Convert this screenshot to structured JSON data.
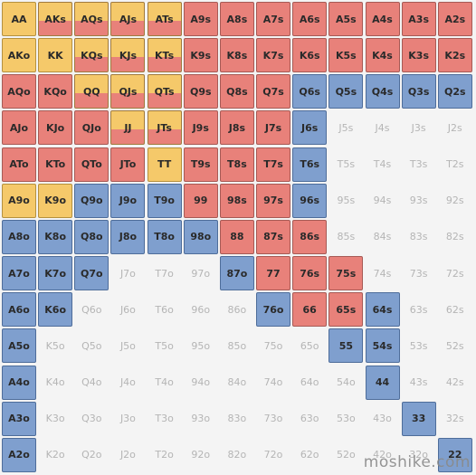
{
  "colors": {
    "red": "#e8817a",
    "blue": "#7f9fce",
    "yellow": "#f5c96a",
    "empty_text": "#b5b5b5"
  },
  "ranks": [
    "A",
    "K",
    "Q",
    "J",
    "T",
    "9",
    "8",
    "7",
    "6",
    "5",
    "4",
    "3",
    "2"
  ],
  "rows": [
    [
      "AA:y",
      "AKs:yr",
      "AQs:yr",
      "AJs:yr",
      "ATs:yr",
      "A9s:r",
      "A8s:r",
      "A7s:r",
      "A6s:r",
      "A5s:r",
      "A4s:r",
      "A3s:r",
      "A2s:r"
    ],
    [
      "AKo:y",
      "KK:y",
      "KQs:yr",
      "KJs:yr",
      "KTs:yr",
      "K9s:r",
      "K8s:r",
      "K7s:r",
      "K6s:r",
      "K5s:r",
      "K4s:r",
      "K3s:r",
      "K2s:r"
    ],
    [
      "AQo:r",
      "KQo:r",
      "QQ:yr",
      "QJs:yr",
      "QTs:yr",
      "Q9s:r",
      "Q8s:r",
      "Q7s:r",
      "Q6s:b",
      "Q5s:b",
      "Q4s:b",
      "Q3s:b",
      "Q2s:b"
    ],
    [
      "AJo:r",
      "KJo:r",
      "QJo:r",
      "JJ:yr",
      "JTs:yr",
      "J9s:r",
      "J8s:r",
      "J7s:r",
      "J6s:b",
      "J5s:e",
      "J4s:e",
      "J3s:e",
      "J2s:e"
    ],
    [
      "ATo:r",
      "KTo:r",
      "QTo:r",
      "JTo:r",
      "TT:y",
      "T9s:r",
      "T8s:r",
      "T7s:r",
      "T6s:b",
      "T5s:e",
      "T4s:e",
      "T3s:e",
      "T2s:e"
    ],
    [
      "A9o:y",
      "K9o:y",
      "Q9o:b",
      "J9o:b",
      "T9o:b",
      "99:r",
      "98s:r",
      "97s:r",
      "96s:b",
      "95s:e",
      "94s:e",
      "93s:e",
      "92s:e"
    ],
    [
      "A8o:b",
      "K8o:b",
      "Q8o:b",
      "J8o:b",
      "T8o:b",
      "98o:b",
      "88:r",
      "87s:r",
      "86s:r",
      "85s:e",
      "84s:e",
      "83s:e",
      "82s:e"
    ],
    [
      "A7o:b",
      "K7o:b",
      "Q7o:b",
      "J7o:e",
      "T7o:e",
      "97o:e",
      "87o:b",
      "77:r",
      "76s:r",
      "75s:r",
      "74s:e",
      "73s:e",
      "72s:e"
    ],
    [
      "A6o:b",
      "K6o:b",
      "Q6o:e",
      "J6o:e",
      "T6o:e",
      "96o:e",
      "86o:e",
      "76o:b",
      "66:r",
      "65s:r",
      "64s:b",
      "63s:e",
      "62s:e"
    ],
    [
      "A5o:b",
      "K5o:e",
      "Q5o:e",
      "J5o:e",
      "T5o:e",
      "95o:e",
      "85o:e",
      "75o:e",
      "65o:e",
      "55:b",
      "54s:b",
      "53s:e",
      "52s:e"
    ],
    [
      "A4o:b",
      "K4o:e",
      "Q4o:e",
      "J4o:e",
      "T4o:e",
      "94o:e",
      "84o:e",
      "74o:e",
      "64o:e",
      "54o:e",
      "44:b",
      "43s:e",
      "42s:e"
    ],
    [
      "A3o:b",
      "K3o:e",
      "Q3o:e",
      "J3o:e",
      "T3o:e",
      "93o:e",
      "83o:e",
      "73o:e",
      "63o:e",
      "53o:e",
      "43o:e",
      "33:b",
      "32s:e"
    ],
    [
      "A2o:b",
      "K2o:e",
      "Q2o:e",
      "J2o:e",
      "T2o:e",
      "92o:e",
      "82o:e",
      "72o:e",
      "62o:e",
      "52o:e",
      "42o:e",
      "32o:e",
      "22:b"
    ]
  ],
  "watermark": "moshike.com"
}
